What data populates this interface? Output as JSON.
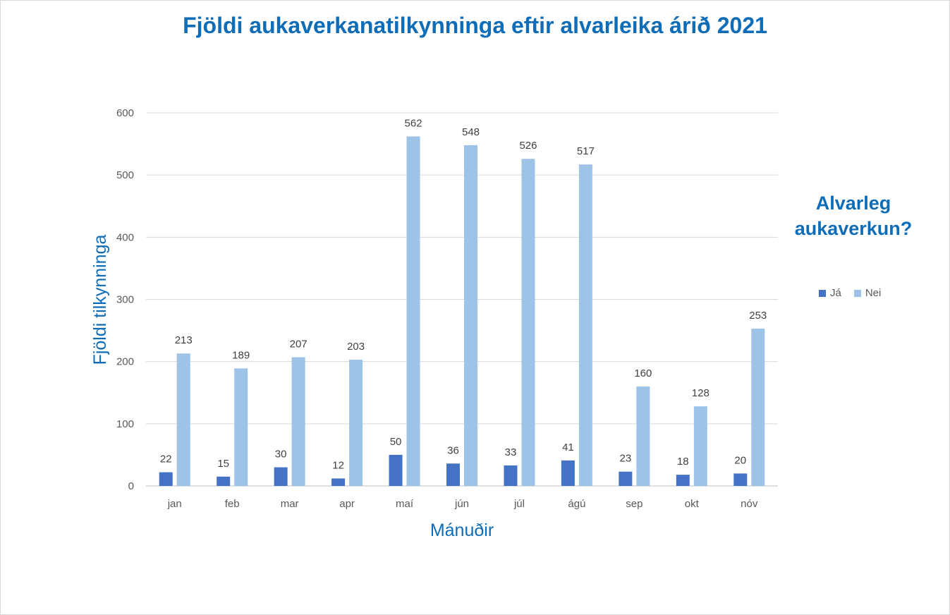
{
  "chart_data": {
    "type": "bar",
    "title": "Fjöldi aukaverkanatilkynninga eftir alvarleika árið 2021",
    "xlabel": "Mánuðir",
    "ylabel": "Fjöldi tilkynninga",
    "ylim": [
      0,
      600
    ],
    "yticks": [
      "0",
      "100",
      "200",
      "300",
      "400",
      "500",
      "600"
    ],
    "grid": true,
    "legend_title": "Alvarleg aukaverkun?",
    "legend_position": "right",
    "categories": [
      "jan",
      "feb",
      "mar",
      "apr",
      "maí",
      "jún",
      "júl",
      "ágú",
      "sep",
      "okt",
      "nóv"
    ],
    "series": [
      {
        "name": "Já",
        "color": "#4472c4",
        "values": [
          22,
          15,
          30,
          12,
          50,
          36,
          33,
          41,
          23,
          18,
          20
        ]
      },
      {
        "name": "Nei",
        "color": "#9dc3e6",
        "values": [
          213,
          189,
          207,
          203,
          562,
          548,
          526,
          517,
          160,
          128,
          253
        ]
      }
    ]
  }
}
